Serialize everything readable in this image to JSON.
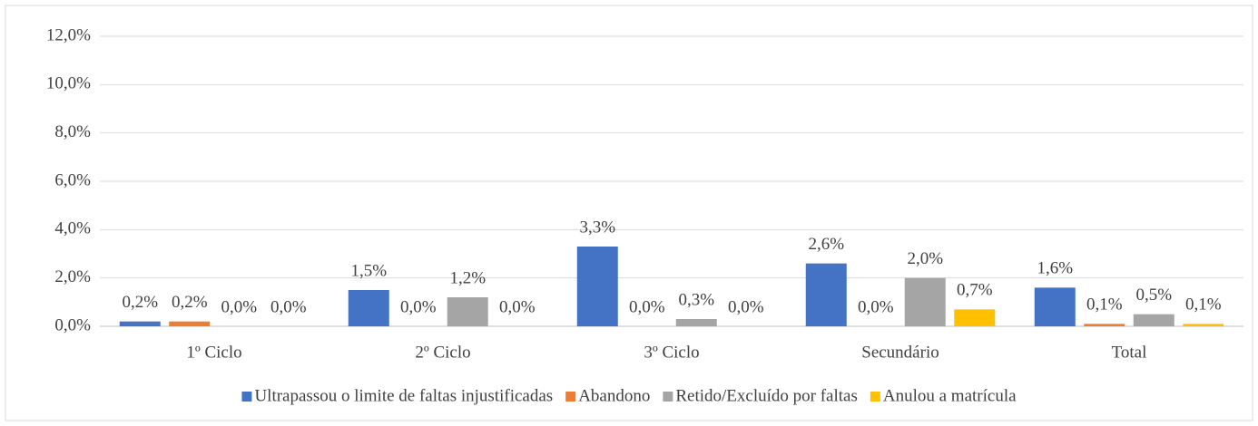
{
  "chart_data": {
    "type": "bar",
    "categories": [
      "1º Ciclo",
      "2º Ciclo",
      "3º Ciclo",
      "Secundário",
      "Total"
    ],
    "series": [
      {
        "name": "Ultrapassou o limite de faltas injustificadas",
        "color": "#4472c4",
        "values": [
          0.2,
          1.5,
          3.3,
          2.6,
          1.6
        ],
        "value_labels": [
          "0,2%",
          "1,5%",
          "3,3%",
          "2,6%",
          "1,6%"
        ]
      },
      {
        "name": "Abandono",
        "color": "#ed7d31",
        "values": [
          0.2,
          0.0,
          0.0,
          0.0,
          0.1
        ],
        "value_labels": [
          "0,2%",
          "0,0%",
          "0,0%",
          "0,0%",
          "0,1%"
        ]
      },
      {
        "name": "Retido/Excluído por faltas",
        "color": "#a5a5a5",
        "values": [
          0.0,
          1.2,
          0.3,
          2.0,
          0.5
        ],
        "value_labels": [
          "0,0%",
          "1,2%",
          "0,3%",
          "2,0%",
          "0,5%"
        ]
      },
      {
        "name": "Anulou a matrícula",
        "color": "#ffc000",
        "values": [
          0.0,
          0.0,
          0.0,
          0.7,
          0.1
        ],
        "value_labels": [
          "0,0%",
          "0,0%",
          "0,0%",
          "0,7%",
          "0,1%"
        ]
      }
    ],
    "ylim": [
      0,
      12
    ],
    "yticks": [
      {
        "value": 0,
        "label": "0,0%"
      },
      {
        "value": 2,
        "label": "2,0%"
      },
      {
        "value": 4,
        "label": "4,0%"
      },
      {
        "value": 6,
        "label": "6,0%"
      },
      {
        "value": 8,
        "label": "8,0%"
      },
      {
        "value": 10,
        "label": "10,0%"
      },
      {
        "value": 12,
        "label": "12,0%"
      }
    ],
    "grid": true,
    "legend": "bottom"
  }
}
